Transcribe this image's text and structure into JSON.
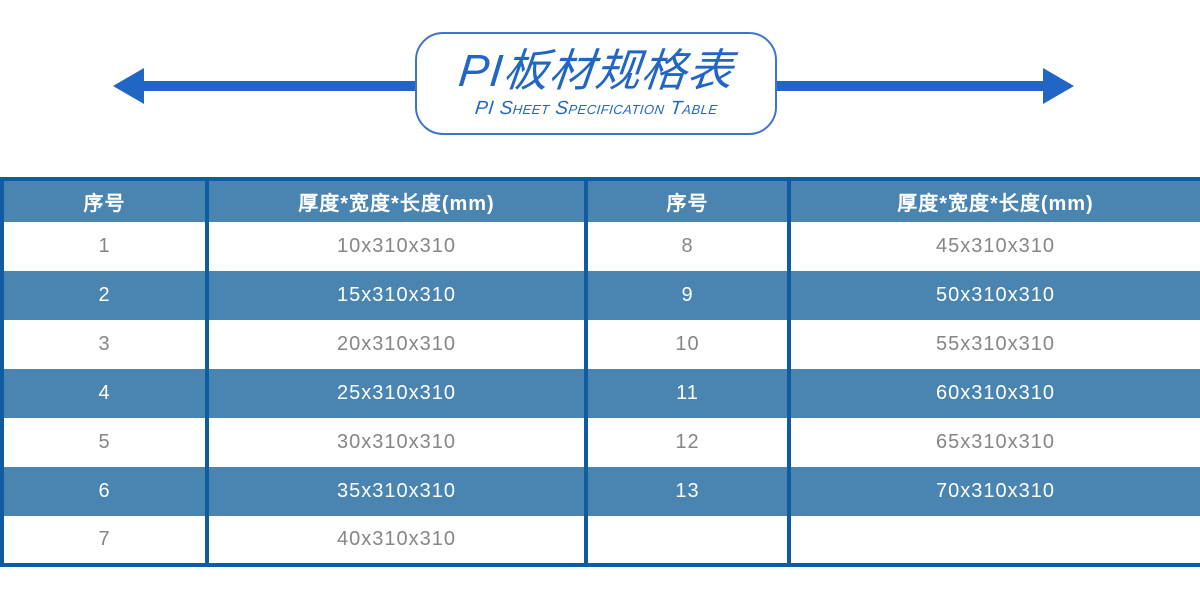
{
  "banner": {
    "title": "PI板材规格表",
    "subtitle": "PI Sheet Specification Table"
  },
  "colors": {
    "accent_blue": "#2166C4",
    "steel_blue": "#4A84B0",
    "dark_border_blue": "#0F5DA0",
    "cell_text_gray": "#85868A",
    "title_box_border_blue": "#3E74CB"
  },
  "table": {
    "columns": [
      "序号",
      "厚度*宽度*长度(mm)",
      "序号",
      "厚度*宽度*长度(mm)"
    ],
    "rows": [
      [
        "1",
        "10x310x310",
        "8",
        "45x310x310"
      ],
      [
        "2",
        "15x310x310",
        "9",
        "50x310x310"
      ],
      [
        "3",
        "20x310x310",
        "10",
        "55x310x310"
      ],
      [
        "4",
        "25x310x310",
        "11",
        "60x310x310"
      ],
      [
        "5",
        "30x310x310",
        "12",
        "65x310x310"
      ],
      [
        "6",
        "35x310x310",
        "13",
        "70x310x310"
      ],
      [
        "7",
        "40x310x310",
        "",
        ""
      ]
    ]
  }
}
